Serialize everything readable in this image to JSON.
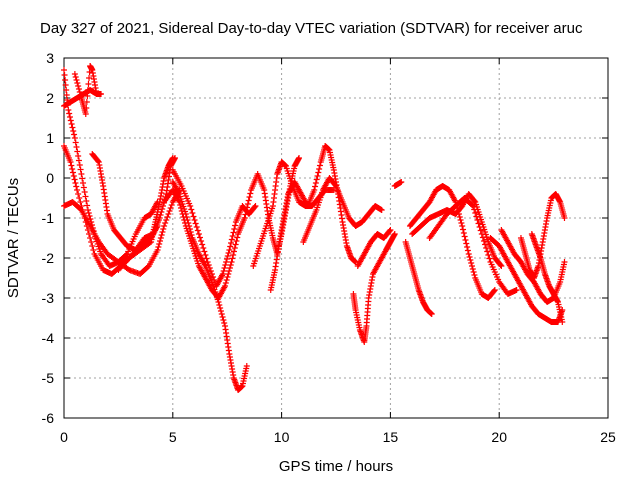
{
  "chart_data": {
    "type": "scatter",
    "title": "Day 327 of 2021, Sidereal Day-to-day VTEC variation (SDTVAR) for receiver aruc",
    "xlabel": "GPS time / hours",
    "ylabel": "SDTVAR / TECUs",
    "xlim": [
      0,
      25
    ],
    "ylim": [
      -6,
      3
    ],
    "x_ticks": [
      0,
      5,
      10,
      15,
      20,
      25
    ],
    "y_ticks": [
      -6,
      -5,
      -4,
      -3,
      -2,
      -1,
      0,
      1,
      2,
      3
    ],
    "grid": true,
    "marker": "+",
    "marker_color": "#ff0000",
    "series": [
      {
        "name": "trace-1",
        "points": [
          [
            0.0,
            2.7
          ],
          [
            0.2,
            1.7
          ],
          [
            0.5,
            1.0
          ],
          [
            0.8,
            0.1
          ],
          [
            1.1,
            -0.8
          ],
          [
            1.4,
            -1.4
          ],
          [
            1.7,
            -1.9
          ],
          [
            2.1,
            -2.2
          ],
          [
            2.5,
            -2.1
          ],
          [
            2.9,
            -1.9
          ],
          [
            3.3,
            -1.4
          ],
          [
            3.7,
            -1.0
          ],
          [
            4.0,
            -0.9
          ],
          [
            4.3,
            -0.6
          ]
        ]
      },
      {
        "name": "trace-2",
        "points": [
          [
            0.0,
            1.8
          ],
          [
            0.3,
            1.9
          ],
          [
            0.6,
            2.0
          ],
          [
            0.9,
            2.1
          ],
          [
            1.2,
            2.2
          ],
          [
            1.5,
            2.1
          ],
          [
            1.7,
            2.1
          ]
        ]
      },
      {
        "name": "trace-3",
        "points": [
          [
            0.0,
            0.8
          ],
          [
            0.3,
            0.4
          ],
          [
            0.6,
            -0.3
          ],
          [
            1.0,
            -1.1
          ],
          [
            1.4,
            -1.9
          ],
          [
            1.8,
            -2.3
          ],
          [
            2.2,
            -2.4
          ],
          [
            2.6,
            -2.2
          ],
          [
            3.0,
            -2.0
          ],
          [
            3.5,
            -1.7
          ],
          [
            4.0,
            -1.5
          ],
          [
            4.3,
            -1.2
          ]
        ]
      },
      {
        "name": "trace-4",
        "points": [
          [
            0.0,
            -0.7
          ],
          [
            0.4,
            -0.6
          ],
          [
            0.8,
            -0.8
          ],
          [
            1.2,
            -1.2
          ],
          [
            1.6,
            -1.6
          ],
          [
            2.0,
            -1.9
          ],
          [
            2.5,
            -2.1
          ],
          [
            3.0,
            -2.3
          ],
          [
            3.5,
            -2.4
          ],
          [
            3.9,
            -2.2
          ],
          [
            4.3,
            -1.8
          ],
          [
            4.6,
            -1.2
          ],
          [
            5.0,
            -0.6
          ],
          [
            5.3,
            -0.3
          ]
        ]
      },
      {
        "name": "trace-5",
        "points": [
          [
            0.5,
            2.6
          ],
          [
            0.8,
            2.0
          ],
          [
            1.0,
            1.6
          ],
          [
            1.2,
            2.8
          ],
          [
            1.3,
            2.7
          ],
          [
            1.5,
            2.1
          ]
        ]
      },
      {
        "name": "trace-6",
        "points": [
          [
            1.3,
            0.6
          ],
          [
            1.6,
            0.4
          ],
          [
            1.8,
            -0.2
          ],
          [
            2.0,
            -0.9
          ],
          [
            2.3,
            -1.3
          ],
          [
            2.6,
            -1.5
          ],
          [
            2.9,
            -1.7
          ],
          [
            3.3,
            -1.8
          ],
          [
            3.7,
            -1.5
          ],
          [
            4.1,
            -1.4
          ],
          [
            4.4,
            -1.0
          ],
          [
            4.7,
            -0.4
          ],
          [
            4.9,
            0.3
          ],
          [
            5.1,
            0.5
          ]
        ]
      },
      {
        "name": "trace-7",
        "points": [
          [
            2.5,
            -2.3
          ],
          [
            3.0,
            -2.0
          ],
          [
            3.5,
            -1.8
          ],
          [
            4.0,
            -1.6
          ],
          [
            4.2,
            -1.1
          ],
          [
            4.4,
            -0.6
          ],
          [
            4.6,
            0.0
          ],
          [
            4.8,
            0.3
          ],
          [
            5.0,
            0.5
          ]
        ]
      },
      {
        "name": "trace-8",
        "points": [
          [
            5.0,
            -0.1
          ],
          [
            5.3,
            -0.4
          ],
          [
            5.6,
            -0.9
          ],
          [
            5.9,
            -1.5
          ],
          [
            6.2,
            -1.9
          ],
          [
            6.5,
            -2.2
          ],
          [
            6.8,
            -2.6
          ],
          [
            7.1,
            -3.1
          ],
          [
            7.4,
            -3.7
          ],
          [
            7.6,
            -4.4
          ],
          [
            7.8,
            -5.0
          ],
          [
            8.0,
            -5.3
          ],
          [
            8.2,
            -5.2
          ],
          [
            8.4,
            -4.7
          ]
        ]
      },
      {
        "name": "trace-9",
        "points": [
          [
            4.6,
            -0.6
          ],
          [
            5.0,
            -0.3
          ],
          [
            5.3,
            -0.6
          ],
          [
            5.6,
            -1.2
          ],
          [
            5.9,
            -1.7
          ],
          [
            6.2,
            -2.2
          ],
          [
            6.5,
            -2.5
          ],
          [
            6.8,
            -2.8
          ],
          [
            7.1,
            -3.0
          ],
          [
            7.4,
            -2.7
          ],
          [
            7.7,
            -2.1
          ],
          [
            8.0,
            -1.4
          ],
          [
            8.3,
            -1.0
          ]
        ]
      },
      {
        "name": "trace-10",
        "points": [
          [
            5.0,
            0.2
          ],
          [
            5.4,
            -0.2
          ],
          [
            5.8,
            -0.7
          ],
          [
            6.2,
            -1.4
          ],
          [
            6.6,
            -2.1
          ],
          [
            7.0,
            -2.7
          ],
          [
            7.3,
            -2.4
          ],
          [
            7.6,
            -1.8
          ],
          [
            7.9,
            -1.1
          ],
          [
            8.2,
            -0.7
          ],
          [
            8.5,
            -0.9
          ],
          [
            8.8,
            -0.7
          ]
        ]
      },
      {
        "name": "trace-11",
        "points": [
          [
            8.3,
            -1.0
          ],
          [
            8.6,
            -0.3
          ],
          [
            8.9,
            0.1
          ],
          [
            9.2,
            -0.3
          ],
          [
            9.4,
            -1.0
          ],
          [
            9.6,
            -1.5
          ],
          [
            9.8,
            -1.9
          ],
          [
            10.0,
            -1.4
          ],
          [
            10.2,
            -0.8
          ],
          [
            10.4,
            -0.2
          ],
          [
            10.6,
            0.3
          ],
          [
            10.8,
            0.5
          ]
        ]
      },
      {
        "name": "trace-12",
        "points": [
          [
            8.7,
            -2.2
          ],
          [
            9.0,
            -1.7
          ],
          [
            9.3,
            -1.2
          ],
          [
            9.6,
            -0.7
          ],
          [
            9.8,
            0.1
          ],
          [
            10.0,
            0.4
          ],
          [
            10.2,
            0.3
          ],
          [
            10.5,
            -0.2
          ],
          [
            10.8,
            -0.6
          ],
          [
            11.1,
            -0.7
          ],
          [
            11.4,
            -0.7
          ],
          [
            11.7,
            -0.5
          ],
          [
            12.0,
            -0.3
          ],
          [
            12.4,
            -0.3
          ]
        ]
      },
      {
        "name": "trace-13",
        "points": [
          [
            9.5,
            -2.8
          ],
          [
            9.7,
            -2.3
          ],
          [
            9.9,
            -1.6
          ],
          [
            10.1,
            -1.0
          ],
          [
            10.3,
            -0.4
          ],
          [
            10.6,
            -0.1
          ],
          [
            10.9,
            -0.4
          ],
          [
            11.2,
            -0.7
          ],
          [
            11.5,
            -0.3
          ],
          [
            11.8,
            0.4
          ],
          [
            12.0,
            0.8
          ],
          [
            12.2,
            0.7
          ],
          [
            12.4,
            0.2
          ],
          [
            12.6,
            -0.4
          ],
          [
            12.8,
            -1.1
          ],
          [
            13.0,
            -1.7
          ],
          [
            13.2,
            -2.0
          ],
          [
            13.4,
            -2.1
          ]
        ]
      },
      {
        "name": "trace-14",
        "points": [
          [
            11.0,
            -1.6
          ],
          [
            11.3,
            -1.2
          ],
          [
            11.6,
            -0.8
          ],
          [
            11.9,
            -0.3
          ],
          [
            12.2,
            0.0
          ],
          [
            12.5,
            -0.2
          ],
          [
            12.8,
            -0.6
          ],
          [
            13.1,
            -1.0
          ],
          [
            13.4,
            -1.2
          ],
          [
            13.7,
            -1.1
          ],
          [
            14.0,
            -0.9
          ],
          [
            14.3,
            -0.7
          ],
          [
            14.6,
            -0.8
          ]
        ]
      },
      {
        "name": "trace-15",
        "points": [
          [
            13.3,
            -2.9
          ],
          [
            13.4,
            -3.3
          ],
          [
            13.6,
            -3.8
          ],
          [
            13.8,
            -4.1
          ],
          [
            13.9,
            -3.7
          ],
          [
            14.0,
            -3.0
          ],
          [
            14.2,
            -2.4
          ],
          [
            14.5,
            -2.1
          ],
          [
            14.8,
            -1.8
          ],
          [
            15.0,
            -1.6
          ],
          [
            15.2,
            -1.4
          ]
        ]
      },
      {
        "name": "trace-16",
        "points": [
          [
            13.5,
            -2.2
          ],
          [
            13.8,
            -1.9
          ],
          [
            14.1,
            -1.6
          ],
          [
            14.4,
            -1.4
          ],
          [
            14.7,
            -1.5
          ],
          [
            15.0,
            -1.3
          ]
        ]
      },
      {
        "name": "trace-17",
        "points": [
          [
            15.2,
            -0.2
          ],
          [
            15.5,
            -0.1
          ]
        ]
      },
      {
        "name": "trace-18",
        "points": [
          [
            15.7,
            -1.6
          ],
          [
            15.9,
            -2.0
          ],
          [
            16.1,
            -2.4
          ],
          [
            16.3,
            -2.8
          ],
          [
            16.5,
            -3.1
          ],
          [
            16.7,
            -3.3
          ],
          [
            16.9,
            -3.4
          ]
        ]
      },
      {
        "name": "trace-19",
        "points": [
          [
            15.9,
            -1.2
          ],
          [
            16.2,
            -1.0
          ],
          [
            16.5,
            -0.8
          ],
          [
            16.8,
            -0.6
          ],
          [
            17.1,
            -0.3
          ],
          [
            17.4,
            -0.2
          ],
          [
            17.7,
            -0.3
          ],
          [
            18.0,
            -0.6
          ],
          [
            18.3,
            -1.2
          ],
          [
            18.6,
            -1.9
          ],
          [
            18.9,
            -2.5
          ],
          [
            19.2,
            -2.9
          ],
          [
            19.5,
            -3.0
          ],
          [
            19.8,
            -2.8
          ]
        ]
      },
      {
        "name": "trace-20",
        "points": [
          [
            16.0,
            -1.4
          ],
          [
            16.4,
            -1.2
          ],
          [
            16.8,
            -1.0
          ],
          [
            17.2,
            -0.9
          ],
          [
            17.6,
            -0.8
          ],
          [
            18.0,
            -0.9
          ],
          [
            18.3,
            -0.7
          ],
          [
            18.6,
            -0.4
          ],
          [
            18.9,
            -0.6
          ],
          [
            19.2,
            -1.1
          ],
          [
            19.5,
            -1.6
          ],
          [
            19.8,
            -2.0
          ],
          [
            20.1,
            -2.2
          ]
        ]
      },
      {
        "name": "trace-21",
        "points": [
          [
            16.8,
            -1.5
          ],
          [
            17.2,
            -1.2
          ],
          [
            17.6,
            -0.9
          ],
          [
            18.0,
            -0.7
          ],
          [
            18.4,
            -0.5
          ],
          [
            18.8,
            -0.7
          ],
          [
            19.2,
            -1.4
          ],
          [
            19.6,
            -2.1
          ],
          [
            20.0,
            -2.6
          ],
          [
            20.4,
            -2.9
          ],
          [
            20.8,
            -2.8
          ]
        ]
      },
      {
        "name": "trace-22",
        "points": [
          [
            19.6,
            -1.5
          ],
          [
            20.0,
            -1.7
          ],
          [
            20.3,
            -2.0
          ],
          [
            20.6,
            -2.3
          ],
          [
            20.9,
            -2.6
          ],
          [
            21.2,
            -2.9
          ],
          [
            21.5,
            -3.2
          ],
          [
            21.8,
            -3.4
          ],
          [
            22.1,
            -3.5
          ],
          [
            22.4,
            -3.6
          ],
          [
            22.7,
            -3.6
          ],
          [
            22.9,
            -3.3
          ]
        ]
      },
      {
        "name": "trace-23",
        "points": [
          [
            20.1,
            -1.3
          ],
          [
            20.4,
            -1.6
          ],
          [
            20.7,
            -1.9
          ],
          [
            21.0,
            -2.1
          ],
          [
            21.3,
            -2.4
          ],
          [
            21.6,
            -2.6
          ],
          [
            21.9,
            -2.9
          ],
          [
            22.2,
            -3.1
          ],
          [
            22.5,
            -3.0
          ],
          [
            22.8,
            -2.6
          ],
          [
            23.0,
            -2.1
          ]
        ]
      },
      {
        "name": "trace-24",
        "points": [
          [
            21.0,
            -1.5
          ],
          [
            21.2,
            -1.9
          ],
          [
            21.4,
            -2.3
          ],
          [
            21.6,
            -2.5
          ],
          [
            21.8,
            -2.2
          ],
          [
            22.0,
            -1.6
          ],
          [
            22.2,
            -1.0
          ],
          [
            22.4,
            -0.5
          ],
          [
            22.6,
            -0.4
          ],
          [
            22.8,
            -0.6
          ],
          [
            23.0,
            -1.0
          ]
        ]
      },
      {
        "name": "trace-25",
        "points": [
          [
            21.5,
            -1.4
          ],
          [
            21.7,
            -1.7
          ],
          [
            21.9,
            -2.0
          ],
          [
            22.1,
            -2.4
          ],
          [
            22.3,
            -2.7
          ],
          [
            22.5,
            -2.9
          ],
          [
            22.7,
            -3.1
          ],
          [
            22.9,
            -3.6
          ]
        ]
      }
    ]
  }
}
